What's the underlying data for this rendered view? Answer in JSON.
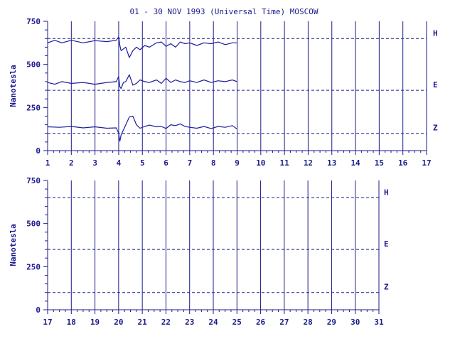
{
  "title": "01 - 30 NOV 1993 (Universal Time) MOSCOW",
  "colors": {
    "ink": "#1a1a8c",
    "trace": "#1c1c9e",
    "background": "#ffffff"
  },
  "chart_data": [
    {
      "type": "line",
      "panel": "top",
      "ylabel": "Nanotesla",
      "xlim": [
        1,
        17
      ],
      "ylim": [
        0,
        750
      ],
      "xticks": [
        "1",
        "2",
        "3",
        "4",
        "5",
        "6",
        "7",
        "8",
        "9",
        "10",
        "11",
        "12",
        "13",
        "14",
        "15",
        "16",
        "17"
      ],
      "yticks": [
        "0",
        "250",
        "500",
        "750"
      ],
      "grid": {
        "vertical_days": true,
        "horizontal": "dashed baselines per component"
      },
      "components": [
        {
          "label": "H",
          "baseline": 650
        },
        {
          "label": "E",
          "baseline": 350
        },
        {
          "label": "Z",
          "baseline": 100
        }
      ],
      "series": [
        {
          "name": "H",
          "x": [
            1,
            1.3,
            1.6,
            2,
            2.5,
            3,
            3.5,
            3.9,
            4.0,
            4.05,
            4.1,
            4.2,
            4.3,
            4.45,
            4.6,
            4.75,
            4.9,
            5.1,
            5.3,
            5.6,
            5.8,
            6.0,
            6.2,
            6.4,
            6.6,
            6.8,
            7.0,
            7.3,
            7.6,
            7.9,
            8.2,
            8.5,
            8.8,
            9.0
          ],
          "y": [
            625,
            640,
            625,
            640,
            625,
            638,
            632,
            640,
            660,
            610,
            580,
            590,
            600,
            540,
            580,
            600,
            585,
            610,
            600,
            625,
            630,
            605,
            620,
            600,
            630,
            620,
            625,
            610,
            625,
            620,
            630,
            615,
            625,
            625
          ]
        },
        {
          "name": "E",
          "x": [
            1,
            1.3,
            1.6,
            2,
            2.5,
            3,
            3.5,
            3.9,
            4.0,
            4.05,
            4.1,
            4.2,
            4.3,
            4.45,
            4.6,
            4.75,
            4.9,
            5.1,
            5.3,
            5.6,
            5.8,
            6.0,
            6.2,
            6.4,
            6.6,
            6.8,
            7.0,
            7.3,
            7.6,
            7.9,
            8.2,
            8.5,
            8.8,
            9.0
          ],
          "y": [
            395,
            385,
            400,
            390,
            395,
            385,
            395,
            400,
            430,
            370,
            360,
            395,
            400,
            440,
            380,
            390,
            410,
            400,
            395,
            410,
            390,
            420,
            395,
            410,
            400,
            395,
            405,
            395,
            410,
            395,
            405,
            400,
            410,
            400
          ]
        },
        {
          "name": "Z",
          "x": [
            1,
            1.5,
            2,
            2.5,
            3,
            3.5,
            3.9,
            4.0,
            4.05,
            4.1,
            4.2,
            4.3,
            4.45,
            4.6,
            4.75,
            4.9,
            5.1,
            5.3,
            5.6,
            5.8,
            6.0,
            6.2,
            6.4,
            6.6,
            6.8,
            7.0,
            7.3,
            7.6,
            7.9,
            8.2,
            8.5,
            8.8,
            9.0
          ],
          "y": [
            138,
            135,
            140,
            132,
            138,
            130,
            132,
            100,
            55,
            90,
            120,
            150,
            195,
            200,
            150,
            130,
            140,
            148,
            138,
            140,
            128,
            150,
            145,
            155,
            140,
            135,
            130,
            140,
            128,
            140,
            135,
            145,
            125
          ]
        }
      ]
    },
    {
      "type": "line",
      "panel": "bottom",
      "ylabel": "Nanotesla",
      "xlim": [
        17,
        31
      ],
      "ylim": [
        0,
        750
      ],
      "xticks": [
        "17",
        "18",
        "19",
        "20",
        "21",
        "22",
        "23",
        "24",
        "25",
        "26",
        "27",
        "28",
        "29",
        "30",
        "31"
      ],
      "yticks": [
        "0",
        "250",
        "500",
        "750"
      ],
      "grid": {
        "vertical_days": true,
        "horizontal": "dashed baselines per component"
      },
      "components": [
        {
          "label": "H",
          "baseline": 650
        },
        {
          "label": "E",
          "baseline": 350
        },
        {
          "label": "Z",
          "baseline": 100
        }
      ],
      "series": []
    }
  ]
}
